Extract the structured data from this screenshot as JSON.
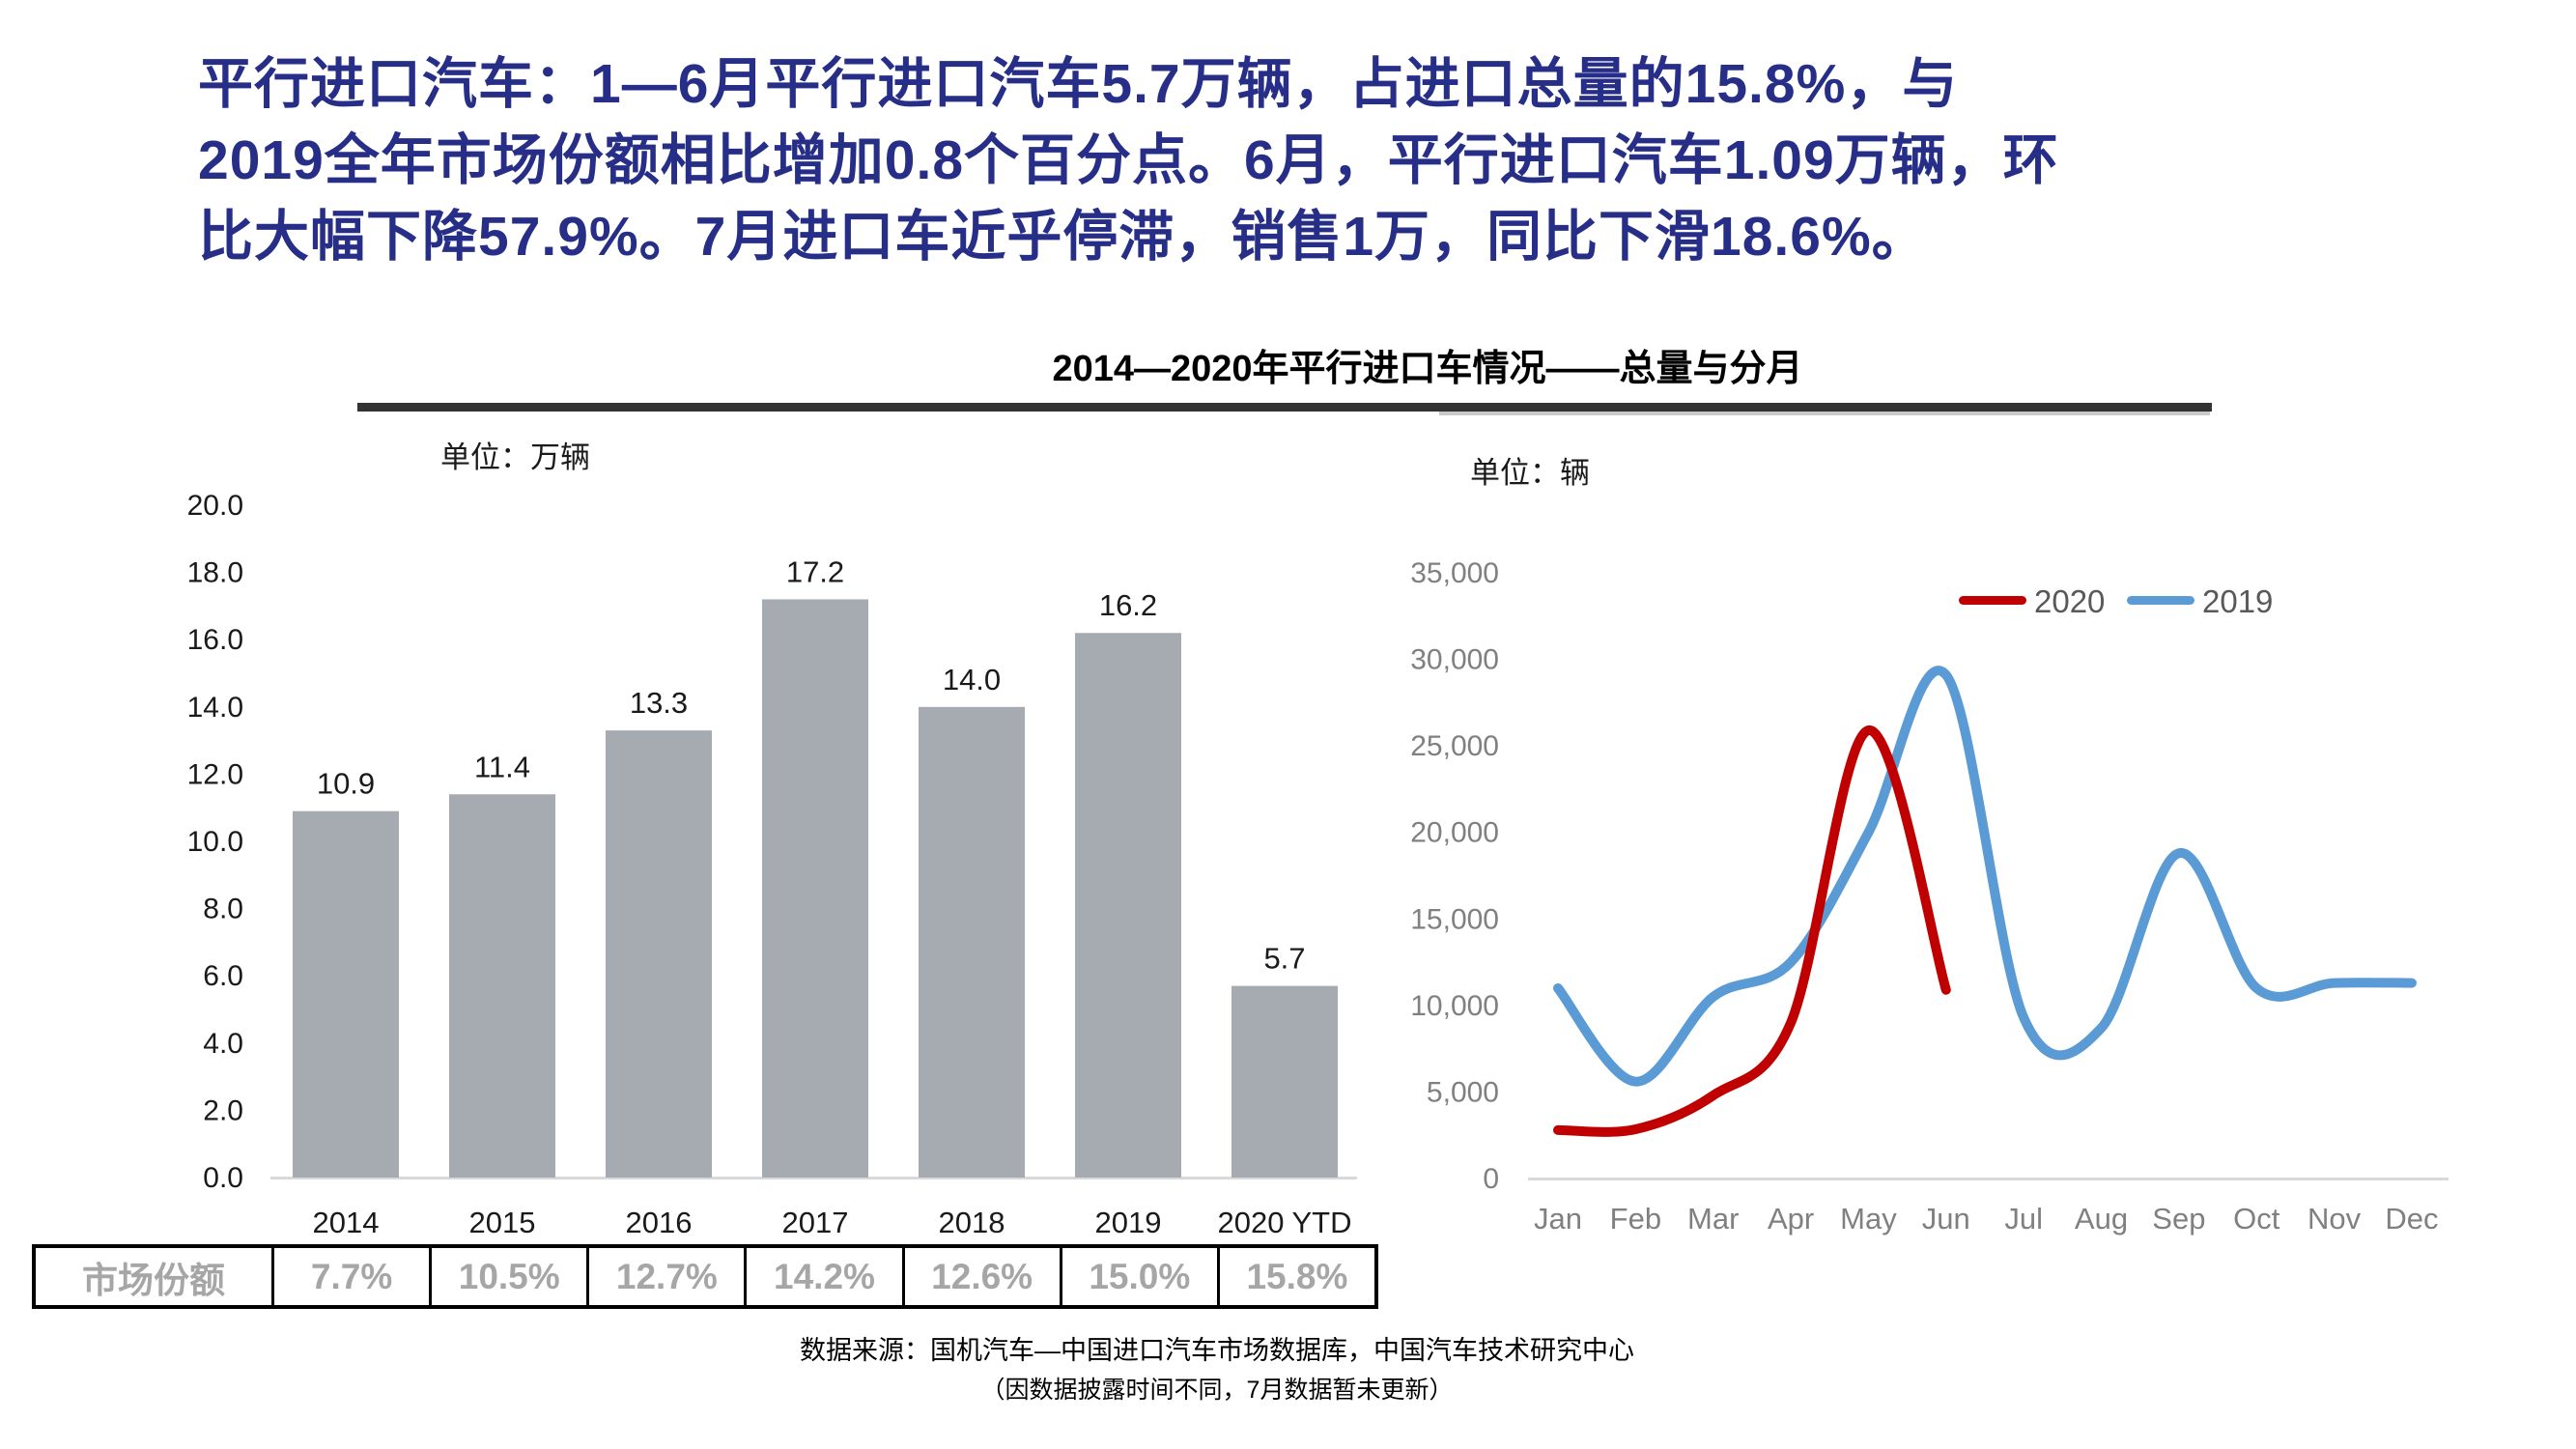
{
  "headline": {
    "lines": [
      "平行进口汽车：1—6月平行进口汽车5.7万辆，占进口总量的15.8%，与",
      "2019全年市场份额相比增加0.8个百分点。6月，平行进口汽车1.09万辆，环",
      "比大幅下降57.9%。7月进口车近乎停滞，销售1万，同比下滑18.6%。"
    ]
  },
  "section_title": "2014—2020年平行进口车情况——总量与分月",
  "footer": {
    "source": "数据来源：国机汽车—中国进口汽车市场数据库，中国汽车技术研究中心",
    "note": "（因数据披露时间不同，7月数据暂未更新）"
  },
  "colors": {
    "headline_navy": "#272E88",
    "bar_gray": "#A6ABB1",
    "series_2020_red": "#C00000",
    "series_2019_blue": "#5B9BD5",
    "axis_gray": "#808080",
    "bar_axis_text": "#1A1A1A",
    "table_text_gray": "#A6A6A6",
    "baseline_gray": "#D9D9D9",
    "legend_text": "#595959"
  },
  "chart_data": [
    {
      "type": "bar",
      "title": "2014—2020年平行进口车情况——总量与分月",
      "unit_label": "单位：万辆",
      "categories": [
        "2014",
        "2015",
        "2016",
        "2017",
        "2018",
        "2019",
        "2020 YTD"
      ],
      "values": [
        10.9,
        11.4,
        13.3,
        17.2,
        14.0,
        16.2,
        5.7
      ],
      "value_labels": [
        "10.9",
        "11.4",
        "13.3",
        "17.2",
        "14.0",
        "16.2",
        "5.7"
      ],
      "ylim": [
        0,
        20
      ],
      "ytick_step": 2,
      "ytick_labels_bottom_to_top": [
        "0.0",
        "2.0",
        "4.0",
        "6.0",
        "8.0",
        "10.0",
        "12.0",
        "14.0",
        "16.0",
        "18.0",
        "20.0"
      ],
      "bar_color": "#A6ABB1",
      "grid": false,
      "xlabel": "",
      "ylabel": ""
    },
    {
      "type": "line",
      "unit_label": "单位：辆",
      "x": [
        "Jan",
        "Feb",
        "Mar",
        "Apr",
        "May",
        "Jun",
        "Jul",
        "Aug",
        "Sep",
        "Oct",
        "Nov",
        "Dec"
      ],
      "series": [
        {
          "name": "2020",
          "color": "#C00000",
          "values": [
            2800,
            2850,
            4800,
            9000,
            25900,
            10900
          ]
        },
        {
          "name": "2019",
          "color": "#5B9BD5",
          "values": [
            11000,
            5600,
            10500,
            12500,
            20000,
            29100,
            9300,
            8700,
            18800,
            11000,
            11300,
            11300
          ]
        }
      ],
      "ylim": [
        0,
        35000
      ],
      "ytick_step": 5000,
      "ytick_labels_bottom_to_top": [
        "0",
        "5,000",
        "10,000",
        "15,000",
        "20,000",
        "25,000",
        "30,000",
        "35,000"
      ],
      "legend_position": "top-right",
      "grid": false
    },
    {
      "type": "table",
      "row_header": "市场份额",
      "columns": [
        "2014",
        "2015",
        "2016",
        "2017",
        "2018",
        "2019",
        "2020 YTD"
      ],
      "values": [
        "7.7%",
        "10.5%",
        "12.7%",
        "14.2%",
        "12.6%",
        "15.0%",
        "15.8%"
      ]
    }
  ]
}
